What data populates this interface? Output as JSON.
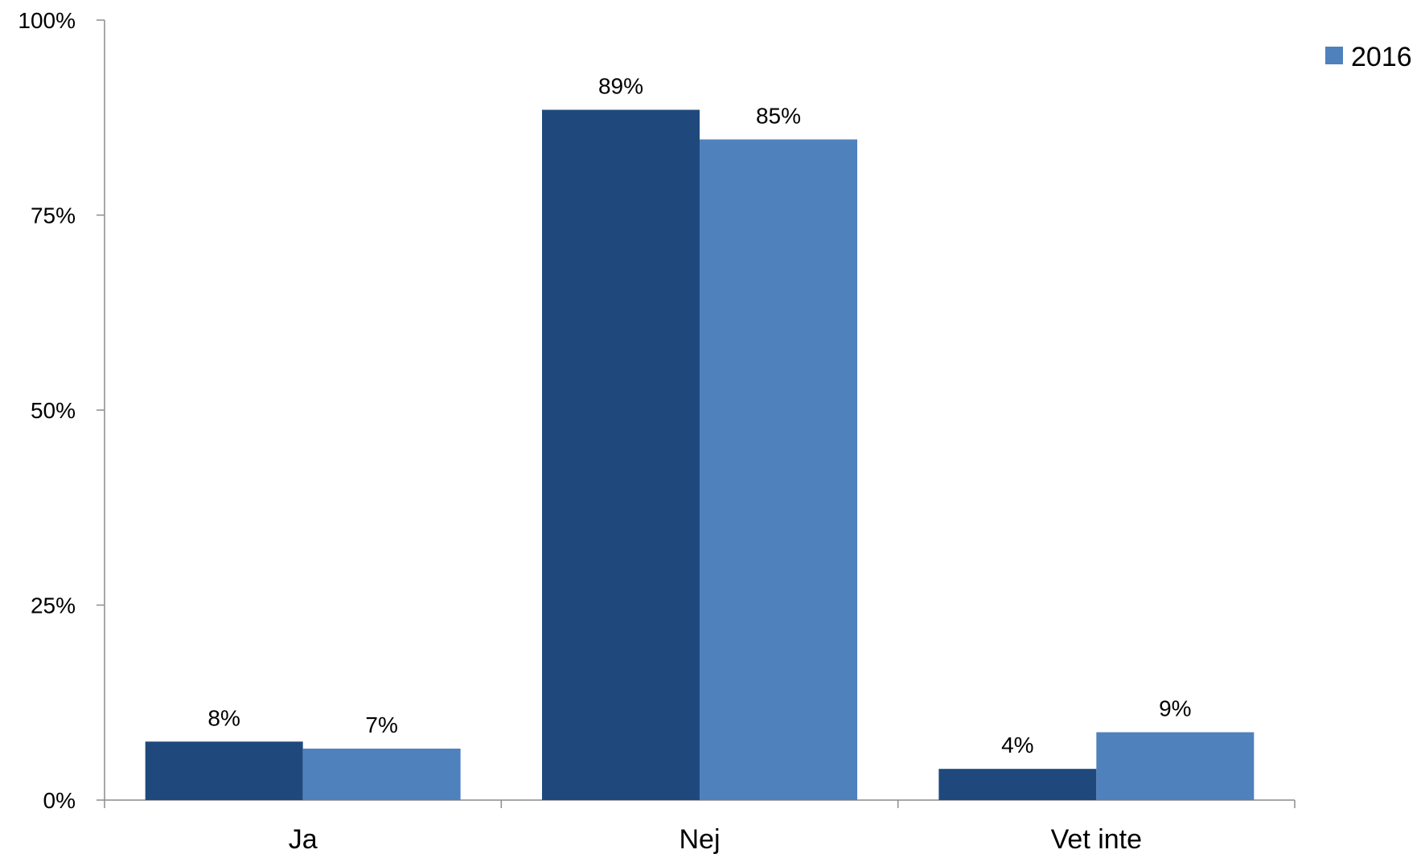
{
  "chart_data": {
    "type": "bar",
    "title": "",
    "xlabel": "",
    "ylabel": "",
    "categories": [
      "Ja",
      "Nej",
      "Vet inte"
    ],
    "series": [
      {
        "values": [
          0.075,
          0.885,
          0.04
        ],
        "labels": [
          "8%",
          "89%",
          "4%"
        ],
        "color": "#1f497d"
      },
      {
        "name": "2016",
        "values": [
          0.066,
          0.847,
          0.087
        ],
        "labels": [
          "7%",
          "85%",
          "9%"
        ],
        "color": "#4f81bd"
      }
    ],
    "ylim": [
      0,
      1
    ],
    "yticks": [
      0,
      0.25,
      0.5,
      0.75,
      1
    ],
    "ytick_labels": [
      "0%",
      "25%",
      "50%",
      "75%",
      "100%"
    ],
    "grid": false,
    "legend": {
      "position": "top-right",
      "entries": [
        "2016"
      ]
    }
  }
}
